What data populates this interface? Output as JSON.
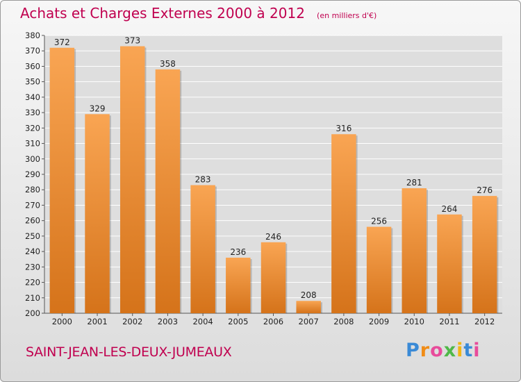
{
  "page": {
    "title": "Achats et Charges Externes 2000 à 2012",
    "unit": "(en milliers d'€)",
    "commune": "SAINT-JEAN-LES-DEUX-JUMEAUX",
    "logo_text": "Proxiti"
  },
  "colors": {
    "bar_light": "#f9a553",
    "bar_dark": "#d5731a",
    "title": "#c0004f",
    "grid": "#ffffff"
  },
  "chart_data": {
    "type": "bar",
    "title": "Achats et Charges Externes 2000 à 2012",
    "subtitle": "(en milliers d'€)",
    "categories": [
      "2000",
      "2001",
      "2002",
      "2003",
      "2004",
      "2005",
      "2006",
      "2007",
      "2008",
      "2009",
      "2010",
      "2011",
      "2012"
    ],
    "values": [
      372,
      329,
      373,
      358,
      283,
      236,
      246,
      208,
      316,
      256,
      281,
      264,
      276
    ],
    "xlabel": "",
    "ylabel": "",
    "ylim": [
      200,
      380
    ],
    "yticks": [
      200,
      210,
      220,
      230,
      240,
      250,
      260,
      270,
      280,
      290,
      300,
      310,
      320,
      330,
      340,
      350,
      360,
      370,
      380
    ],
    "grid": true,
    "legend": "none",
    "data_labels": true
  }
}
